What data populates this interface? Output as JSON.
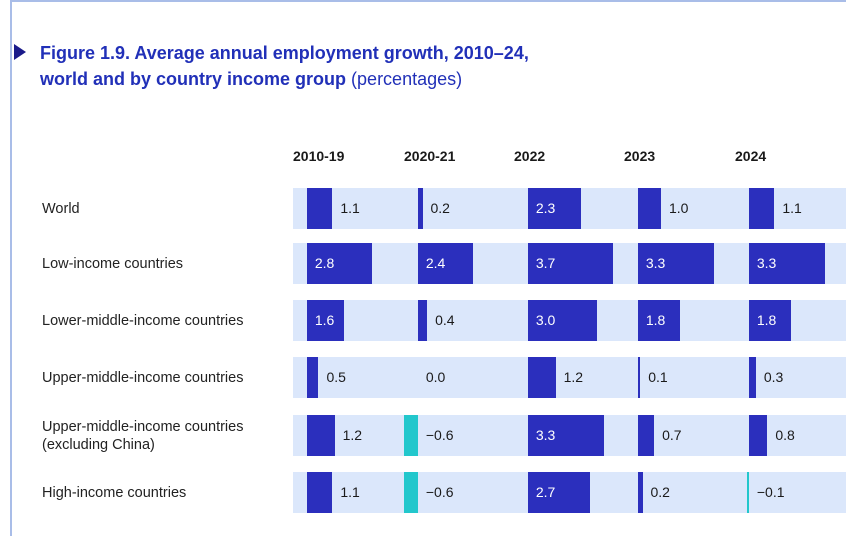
{
  "chart_data": {
    "type": "bar",
    "title": "Figure 1.9. Average annual employment growth, 2010–24,\nworld and by country income group",
    "subtitle": "(percentages)",
    "categories": [
      "World",
      "Low-income countries",
      "Lower-middle-income countries",
      "Upper-middle-income countries",
      "Upper-middle-income countries\n(excluding China)",
      "High-income countries"
    ],
    "color": "#2b2fbd",
    "negative_color": "#22c7cc",
    "xlim": [
      -0.6,
      4.2
    ],
    "series": [
      {
        "name": "2010-19",
        "values": [
          1.1,
          2.8,
          1.6,
          0.5,
          1.2,
          1.1
        ],
        "value_labels": [
          "1.1",
          "2.8",
          "1.6",
          "0.5",
          "1.2",
          "1.1"
        ]
      },
      {
        "name": "2020-21",
        "values": [
          0.2,
          2.4,
          0.4,
          0.0,
          -0.6,
          -0.6
        ],
        "value_labels": [
          "0.2",
          "2.4",
          "0.4",
          "0.0",
          "−0.6",
          "−0.6"
        ]
      },
      {
        "name": "2022",
        "values": [
          2.3,
          3.7,
          3.0,
          1.2,
          3.3,
          2.7
        ],
        "value_labels": [
          "2.3",
          "3.7",
          "3.0",
          "1.2",
          "3.3",
          "2.7"
        ]
      },
      {
        "name": "2023",
        "values": [
          1.0,
          3.3,
          1.8,
          0.1,
          0.7,
          0.2
        ],
        "value_labels": [
          "1.0",
          "3.3",
          "1.8",
          "0.1",
          "0.7",
          "0.2"
        ]
      },
      {
        "name": "2024",
        "values": [
          1.1,
          3.3,
          1.8,
          0.3,
          0.8,
          -0.1
        ],
        "value_labels": [
          "1.1",
          "3.3",
          "1.8",
          "0.3",
          "0.8",
          "−0.1"
        ]
      }
    ]
  }
}
